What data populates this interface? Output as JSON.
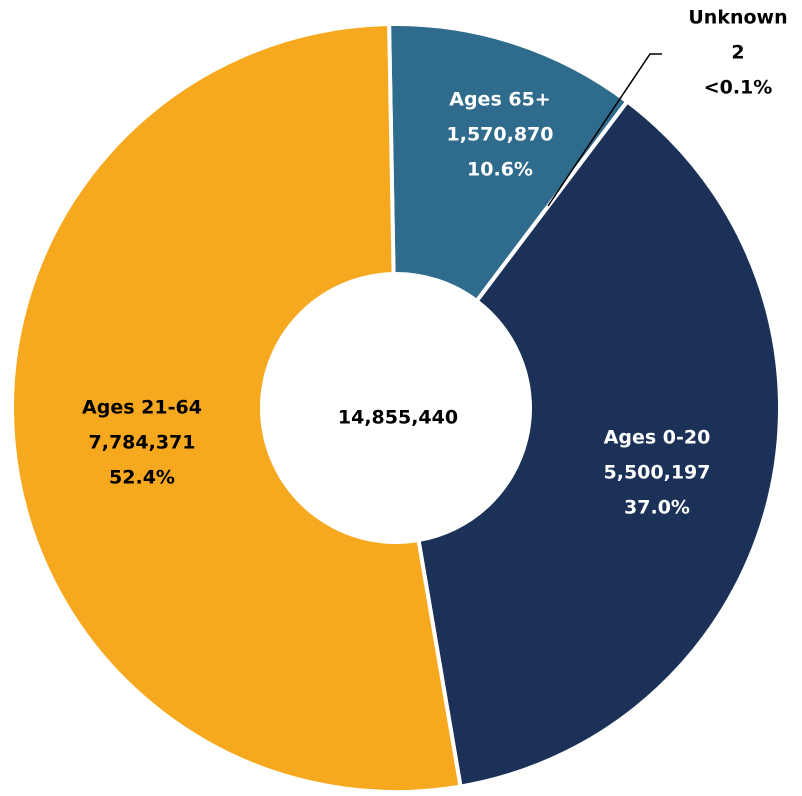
{
  "chart_data": {
    "type": "pie",
    "categories": [
      "Ages 65+",
      "Unknown",
      "Ages 0-20",
      "Ages 21-64"
    ],
    "values": [
      1570870,
      2,
      5500197,
      7784371
    ],
    "value_labels": [
      "1,570,870",
      "2",
      "5,500,197",
      "7,784,371"
    ],
    "percent_labels": [
      "10.6%",
      "<0.1%",
      "37.0%",
      "52.4%"
    ],
    "colors": [
      "#2e6b8c",
      "#7f7f7f",
      "#1b3158",
      "#f6a81f"
    ],
    "total": 14855440,
    "total_label": "14,855,440"
  }
}
